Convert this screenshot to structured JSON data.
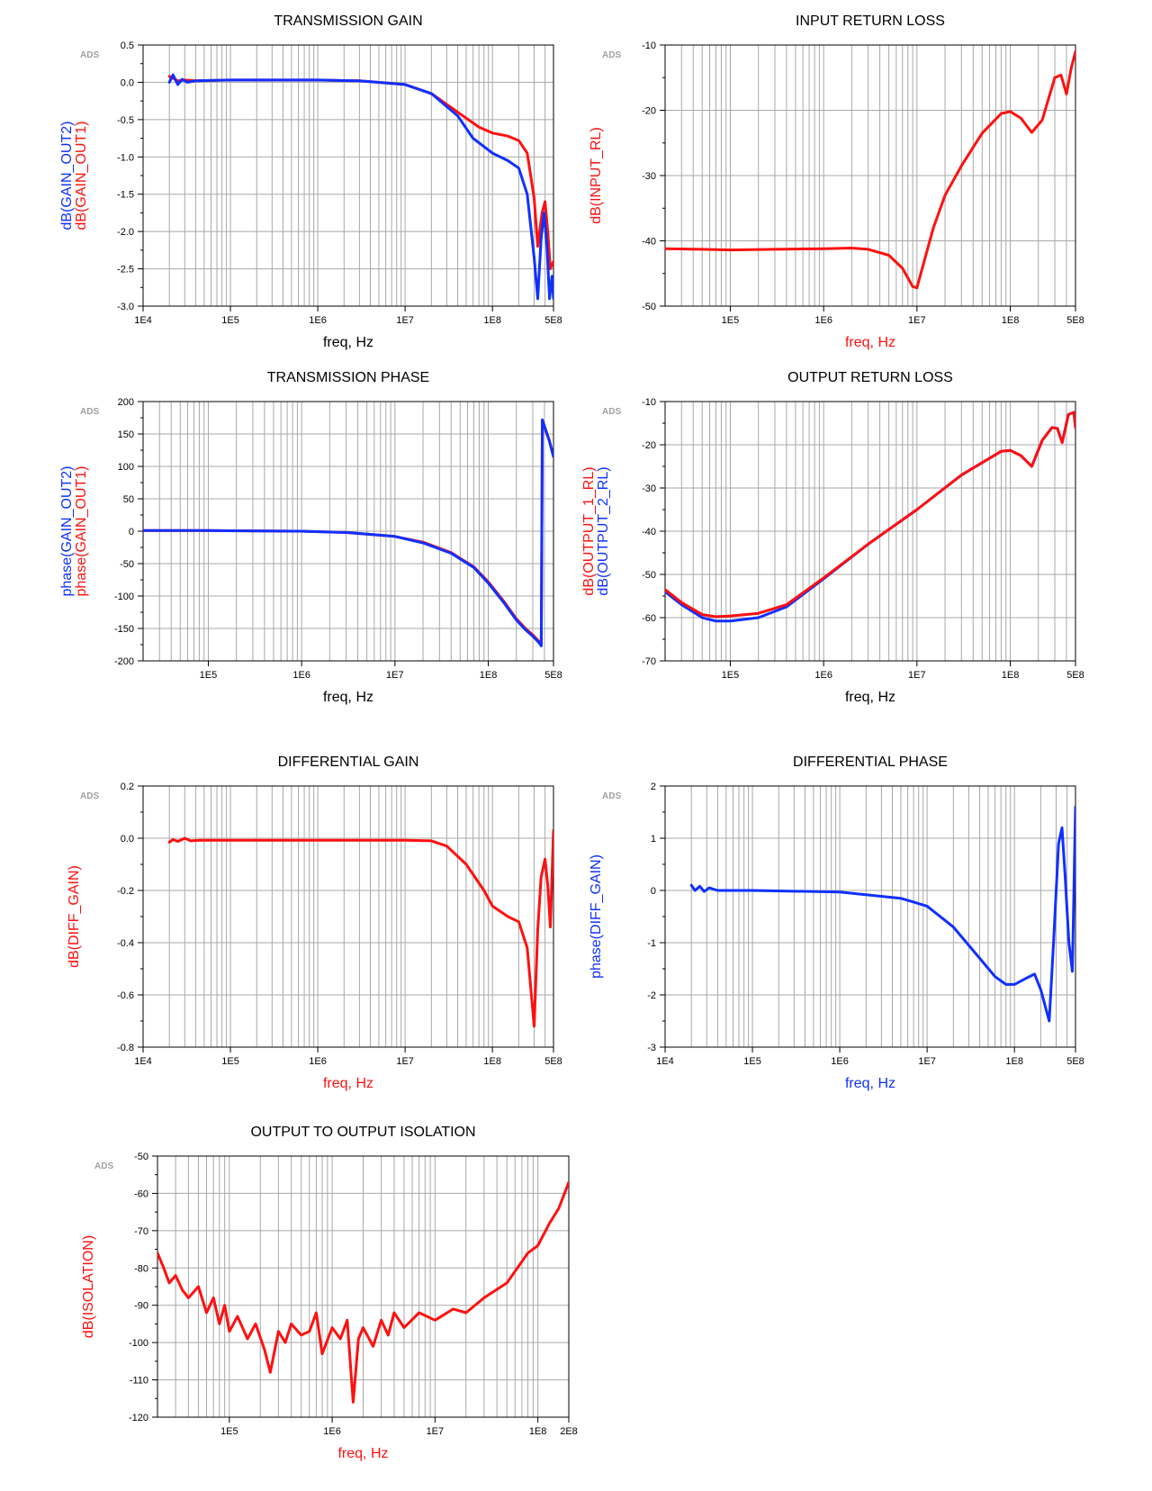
{
  "colors": {
    "red": "#ff1010",
    "blue": "#1030ff",
    "grid": "#a8a8a8",
    "axis": "#000000",
    "watermark": "#a0a0a0"
  },
  "watermark": "ADS",
  "chart_data": [
    {
      "id": "transmission-gain",
      "type": "line",
      "title": "TRANSMISSION GAIN",
      "xlabel": "freq, Hz",
      "xlabel_color": "black",
      "ylabels": [
        {
          "text": "dB(GAIN_OUT2)",
          "color": "blue"
        },
        {
          "text": "dB(GAIN_OUT1)",
          "color": "red"
        }
      ],
      "xscale": "log",
      "xlim": [
        10000,
        500000000
      ],
      "xticks": [
        {
          "v": 10000,
          "label": "1E4"
        },
        {
          "v": 100000,
          "label": "1E5"
        },
        {
          "v": 1000000,
          "label": "1E6"
        },
        {
          "v": 10000000,
          "label": "1E7"
        },
        {
          "v": 100000000,
          "label": "1E8"
        },
        {
          "v": 500000000,
          "label": "5E8"
        }
      ],
      "ylim": [
        -3.0,
        0.5
      ],
      "yticks": [
        0.5,
        0.0,
        -0.5,
        -1.0,
        -1.5,
        -2.0,
        -2.5,
        -3.0
      ],
      "ytick_labels": [
        "0.5",
        "0.0",
        "-0.5",
        "-1.0",
        "-1.5",
        "-2.0",
        "-2.5",
        "-3.0"
      ],
      "series": [
        {
          "color": "red",
          "x": [
            20000,
            25000,
            30000,
            40000,
            100000,
            1000000,
            3000000,
            10000000,
            20000000,
            40000000,
            70000000,
            100000000,
            150000000,
            200000000,
            250000000,
            300000000,
            330000000,
            370000000,
            400000000,
            430000000,
            460000000,
            500000000
          ],
          "y": [
            0.08,
            0.02,
            0.03,
            0.02,
            0.03,
            0.03,
            0.02,
            -0.03,
            -0.15,
            -0.4,
            -0.6,
            -0.68,
            -0.72,
            -0.78,
            -0.95,
            -1.55,
            -2.2,
            -1.75,
            -1.6,
            -2.0,
            -2.5,
            -2.4
          ]
        },
        {
          "color": "blue",
          "x": [
            20000,
            22000,
            25000,
            28000,
            32000,
            40000,
            100000,
            1000000,
            3000000,
            10000000,
            20000000,
            40000000,
            60000000,
            100000000,
            150000000,
            200000000,
            250000000,
            300000000,
            330000000,
            360000000,
            390000000,
            420000000,
            450000000,
            480000000,
            500000000
          ],
          "y": [
            0.0,
            0.1,
            -0.03,
            0.04,
            0.0,
            0.02,
            0.03,
            0.03,
            0.02,
            -0.03,
            -0.15,
            -0.45,
            -0.75,
            -0.95,
            -1.05,
            -1.15,
            -1.5,
            -2.35,
            -2.9,
            -2.1,
            -1.75,
            -2.2,
            -2.9,
            -2.6,
            -2.9
          ]
        }
      ]
    },
    {
      "id": "input-return-loss",
      "type": "line",
      "title": "INPUT RETURN LOSS",
      "xlabel": "freq, Hz",
      "xlabel_color": "red",
      "ylabels": [
        {
          "text": "dB(INPUT_RL)",
          "color": "red"
        }
      ],
      "xscale": "log",
      "xlim": [
        20000,
        500000000
      ],
      "xticks": [
        {
          "v": 100000,
          "label": "1E5"
        },
        {
          "v": 1000000,
          "label": "1E6"
        },
        {
          "v": 10000000,
          "label": "1E7"
        },
        {
          "v": 100000000,
          "label": "1E8"
        },
        {
          "v": 500000000,
          "label": "5E8"
        }
      ],
      "ylim": [
        -50,
        -10
      ],
      "yticks": [
        -10,
        -20,
        -30,
        -40,
        -50
      ],
      "ytick_labels": [
        "-10",
        "-20",
        "-30",
        "-40",
        "-50"
      ],
      "series": [
        {
          "color": "red",
          "x": [
            20000,
            50000,
            100000,
            300000,
            1000000,
            2000000,
            3000000,
            5000000,
            7000000,
            9000000,
            10000000,
            12000000,
            15000000,
            20000000,
            30000000,
            50000000,
            80000000,
            100000000,
            130000000,
            170000000,
            220000000,
            300000000,
            350000000,
            400000000,
            450000000,
            500000000
          ],
          "y": [
            -41.2,
            -41.3,
            -41.4,
            -41.3,
            -41.2,
            -41.1,
            -41.3,
            -42.2,
            -44.2,
            -47.0,
            -47.2,
            -43.0,
            -38.0,
            -33.0,
            -28.5,
            -23.5,
            -20.5,
            -20.2,
            -21.2,
            -23.4,
            -21.5,
            -15.0,
            -14.6,
            -17.5,
            -13.5,
            -11.0
          ]
        }
      ]
    },
    {
      "id": "transmission-phase",
      "type": "line",
      "title": "TRANSMISSION PHASE",
      "xlabel": "freq, Hz",
      "xlabel_color": "black",
      "ylabels": [
        {
          "text": "phase(GAIN_OUT2)",
          "color": "blue"
        },
        {
          "text": "phase(GAIN_OUT1)",
          "color": "red"
        }
      ],
      "xscale": "log",
      "xlim": [
        20000,
        500000000
      ],
      "xticks": [
        {
          "v": 100000,
          "label": "1E5"
        },
        {
          "v": 1000000,
          "label": "1E6"
        },
        {
          "v": 10000000,
          "label": "1E7"
        },
        {
          "v": 100000000,
          "label": "1E8"
        },
        {
          "v": 500000000,
          "label": "5E8"
        }
      ],
      "ylim": [
        -200,
        200
      ],
      "yticks": [
        200,
        150,
        100,
        50,
        0,
        -50,
        -100,
        -150,
        -200
      ],
      "ytick_labels": [
        "200",
        "150",
        "100",
        "50",
        "0",
        "-50",
        "-100",
        "-150",
        "-200"
      ],
      "series": [
        {
          "color": "red",
          "x": [
            20000,
            100000,
            1000000,
            3000000,
            10000000,
            20000000,
            40000000,
            70000000,
            100000000,
            150000000,
            200000000,
            250000000,
            300000000,
            350000000,
            370000000,
            380000000,
            400000000,
            450000000,
            500000000
          ],
          "y": [
            1,
            1,
            0,
            -2,
            -8,
            -17,
            -33,
            -55,
            -78,
            -110,
            -135,
            -150,
            -160,
            -170,
            -175,
            170,
            160,
            140,
            115
          ]
        },
        {
          "color": "blue",
          "x": [
            20000,
            100000,
            1000000,
            3000000,
            10000000,
            20000000,
            40000000,
            70000000,
            100000000,
            150000000,
            200000000,
            250000000,
            300000000,
            350000000,
            370000000,
            380000000,
            400000000,
            450000000,
            500000000
          ],
          "y": [
            1,
            1,
            0,
            -2,
            -8,
            -18,
            -34,
            -56,
            -80,
            -112,
            -137,
            -152,
            -162,
            -172,
            -177,
            172,
            162,
            140,
            115
          ]
        }
      ]
    },
    {
      "id": "output-return-loss",
      "type": "line",
      "title": "OUTPUT RETURN LOSS",
      "xlabel": "freq, Hz",
      "xlabel_color": "black",
      "ylabels": [
        {
          "text": "dB(OUTPUT_1_RL)",
          "color": "red"
        },
        {
          "text": "dB(OUTPUT_2_RL)",
          "color": "blue"
        }
      ],
      "xscale": "log",
      "xlim": [
        20000,
        500000000
      ],
      "xticks": [
        {
          "v": 100000,
          "label": "1E5"
        },
        {
          "v": 1000000,
          "label": "1E6"
        },
        {
          "v": 10000000,
          "label": "1E7"
        },
        {
          "v": 100000000,
          "label": "1E8"
        },
        {
          "v": 500000000,
          "label": "5E8"
        }
      ],
      "ylim": [
        -70,
        -10
      ],
      "yticks": [
        -10,
        -20,
        -30,
        -40,
        -50,
        -60,
        -70
      ],
      "ytick_labels": [
        "-10",
        "-20",
        "-30",
        "-40",
        "-50",
        "-60",
        "-70"
      ],
      "series": [
        {
          "color": "blue",
          "x": [
            20000,
            30000,
            50000,
            70000,
            100000,
            200000,
            400000,
            1000000,
            3000000,
            10000000,
            30000000,
            80000000,
            100000000,
            130000000,
            170000000,
            220000000,
            280000000,
            320000000,
            360000000,
            420000000,
            480000000,
            500000000
          ],
          "y": [
            -54,
            -57,
            -60,
            -60.8,
            -60.8,
            -60,
            -57.5,
            -51,
            -43,
            -35,
            -27,
            -21.5,
            -21.3,
            -22.5,
            -25,
            -19,
            -16,
            -16.2,
            -19.5,
            -13,
            -12.5,
            -16
          ]
        },
        {
          "color": "red",
          "x": [
            20000,
            30000,
            50000,
            70000,
            100000,
            200000,
            400000,
            1000000,
            3000000,
            10000000,
            30000000,
            80000000,
            100000000,
            130000000,
            170000000,
            220000000,
            280000000,
            320000000,
            360000000,
            420000000,
            480000000,
            500000000
          ],
          "y": [
            -53.5,
            -56.5,
            -59.3,
            -59.8,
            -59.6,
            -59,
            -57,
            -50.8,
            -43,
            -35,
            -27,
            -21.5,
            -21.3,
            -22.5,
            -25,
            -19,
            -16,
            -16.2,
            -19.5,
            -13,
            -12.5,
            -16
          ]
        }
      ]
    },
    {
      "id": "differential-gain",
      "type": "line",
      "title": "DIFFERENTIAL GAIN",
      "xlabel": "freq, Hz",
      "xlabel_color": "red",
      "ylabels": [
        {
          "text": "dB(DIFF_GAIN)",
          "color": "red"
        }
      ],
      "xscale": "log",
      "xlim": [
        10000,
        500000000
      ],
      "xticks": [
        {
          "v": 10000,
          "label": "1E4"
        },
        {
          "v": 100000,
          "label": "1E5"
        },
        {
          "v": 1000000,
          "label": "1E6"
        },
        {
          "v": 10000000,
          "label": "1E7"
        },
        {
          "v": 100000000,
          "label": "1E8"
        },
        {
          "v": 500000000,
          "label": "5E8"
        }
      ],
      "ylim": [
        -0.8,
        0.2
      ],
      "yticks": [
        0.2,
        0.0,
        -0.2,
        -0.4,
        -0.6,
        -0.8
      ],
      "ytick_labels": [
        "0.2",
        "0.0",
        "-0.2",
        "-0.4",
        "-0.6",
        "-0.8"
      ],
      "series": [
        {
          "color": "red",
          "x": [
            20000,
            22000,
            25000,
            30000,
            35000,
            45000,
            100000,
            1000000,
            10000000,
            20000000,
            30000000,
            50000000,
            80000000,
            100000000,
            150000000,
            200000000,
            250000000,
            300000000,
            330000000,
            360000000,
            400000000,
            430000000,
            460000000,
            500000000
          ],
          "y": [
            -0.015,
            -0.005,
            -0.012,
            0.0,
            -0.01,
            -0.008,
            -0.008,
            -0.008,
            -0.008,
            -0.01,
            -0.03,
            -0.1,
            -0.2,
            -0.26,
            -0.3,
            -0.32,
            -0.42,
            -0.72,
            -0.35,
            -0.15,
            -0.08,
            -0.18,
            -0.34,
            0.03
          ]
        }
      ]
    },
    {
      "id": "differential-phase",
      "type": "line",
      "title": "DIFFERENTIAL PHASE",
      "xlabel": "freq, Hz",
      "xlabel_color": "blue",
      "ylabels": [
        {
          "text": "phase(DIFF_GAIN)",
          "color": "blue"
        }
      ],
      "xscale": "log",
      "xlim": [
        10000,
        500000000
      ],
      "xticks": [
        {
          "v": 10000,
          "label": "1E4"
        },
        {
          "v": 100000,
          "label": "1E5"
        },
        {
          "v": 1000000,
          "label": "1E6"
        },
        {
          "v": 10000000,
          "label": "1E7"
        },
        {
          "v": 100000000,
          "label": "1E8"
        },
        {
          "v": 500000000,
          "label": "5E8"
        }
      ],
      "ylim": [
        -3,
        2
      ],
      "yticks": [
        2,
        1,
        0,
        -1,
        -2,
        -3
      ],
      "ytick_labels": [
        "2",
        "1",
        "0",
        "-1",
        "-2",
        "-3"
      ],
      "series": [
        {
          "color": "blue",
          "x": [
            20000,
            22000,
            25000,
            28000,
            32000,
            40000,
            100000,
            1000000,
            5000000,
            10000000,
            20000000,
            40000000,
            60000000,
            80000000,
            100000000,
            130000000,
            170000000,
            200000000,
            250000000,
            280000000,
            320000000,
            350000000,
            380000000,
            420000000,
            460000000,
            500000000
          ],
          "y": [
            0.1,
            0.0,
            0.08,
            -0.02,
            0.05,
            0.0,
            0.0,
            -0.03,
            -0.15,
            -0.3,
            -0.7,
            -1.3,
            -1.65,
            -1.8,
            -1.8,
            -1.7,
            -1.6,
            -1.9,
            -2.5,
            -1.0,
            0.9,
            1.2,
            0.3,
            -1.0,
            -1.55,
            1.6
          ]
        }
      ]
    },
    {
      "id": "output-isolation",
      "type": "line",
      "title": "OUTPUT TO OUTPUT ISOLATION",
      "xlabel": "freq, Hz",
      "xlabel_color": "red",
      "ylabels": [
        {
          "text": "dB(ISOLATION)",
          "color": "red"
        }
      ],
      "xscale": "log",
      "xlim": [
        20000,
        200000000
      ],
      "xticks": [
        {
          "v": 100000,
          "label": "1E5"
        },
        {
          "v": 1000000,
          "label": "1E6"
        },
        {
          "v": 10000000,
          "label": "1E7"
        },
        {
          "v": 100000000,
          "label": "1E8"
        },
        {
          "v": 200000000,
          "label": "2E8"
        }
      ],
      "ylim": [
        -120,
        -50
      ],
      "yticks": [
        -50,
        -60,
        -70,
        -80,
        -90,
        -100,
        -110,
        -120
      ],
      "ytick_labels": [
        "-50",
        "-60",
        "-70",
        "-80",
        "-90",
        "-100",
        "-110",
        "-120"
      ],
      "series": [
        {
          "color": "red",
          "x": [
            20000,
            23000,
            26000,
            30000,
            35000,
            40000,
            50000,
            60000,
            70000,
            80000,
            90000,
            100000,
            120000,
            150000,
            180000,
            220000,
            250000,
            300000,
            350000,
            400000,
            500000,
            600000,
            700000,
            800000,
            1000000,
            1200000,
            1400000,
            1600000,
            1800000,
            2000000,
            2500000,
            3000000,
            3500000,
            4000000,
            5000000,
            7000000,
            10000000,
            15000000,
            20000000,
            30000000,
            50000000,
            80000000,
            100000000,
            130000000,
            160000000,
            200000000
          ],
          "y": [
            -76,
            -80,
            -84,
            -82,
            -86,
            -88,
            -85,
            -92,
            -88,
            -95,
            -90,
            -97,
            -93,
            -99,
            -95,
            -102,
            -108,
            -97,
            -100,
            -95,
            -98,
            -97,
            -92,
            -103,
            -96,
            -99,
            -94,
            -116,
            -99,
            -96,
            -101,
            -94,
            -98,
            -92,
            -96,
            -92,
            -94,
            -91,
            -92,
            -88,
            -84,
            -76,
            -74,
            -68,
            -64,
            -57
          ]
        }
      ]
    }
  ]
}
